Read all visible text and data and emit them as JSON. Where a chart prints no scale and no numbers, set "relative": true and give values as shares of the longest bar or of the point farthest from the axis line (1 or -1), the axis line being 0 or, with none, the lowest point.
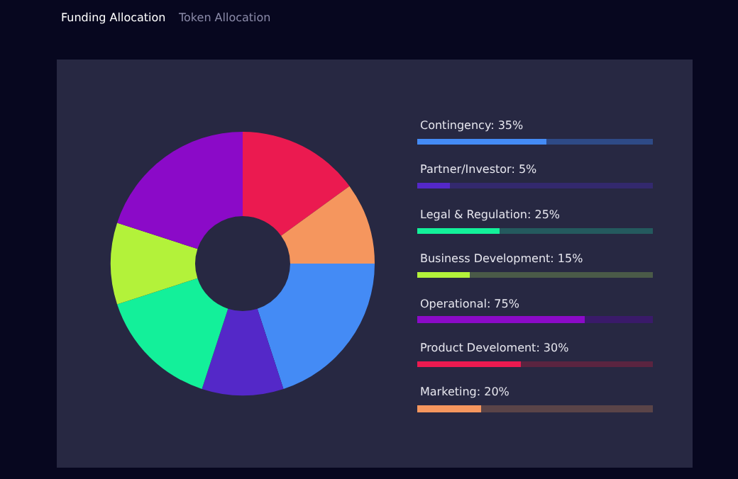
{
  "chart_data": [
    {
      "type": "donut",
      "categories": [
        null,
        null,
        null,
        null,
        null,
        null,
        null
      ],
      "values": [
        20,
        10,
        15,
        10,
        20,
        15,
        10
      ],
      "colors": [
        "#448bf5",
        "#5428c8",
        "#13f09a",
        "#b3f23a",
        "#8b0ac8",
        "#eb1a50",
        "#f5965e"
      ],
      "annotations": [
        "Funding Allocation",
        "Token Allocation"
      ]
    },
    {
      "type": "bar",
      "orientation": "horizontal",
      "stacked": true,
      "relative": true,
      "categories": [
        "Contingency: 35%",
        "Partner/Investor: 5%",
        "Legal & Regulation: 25%",
        "Business Development: 15%",
        "Operational: 75%",
        "Product Develoment: 30%",
        "Marketing: 20%"
      ],
      "series": [
        {
          "values": [
            0.55,
            0.14,
            0.35,
            0.22,
            0.71,
            0.44,
            0.27
          ],
          "colors": [
            "#448bf5",
            "#5428c8",
            "#13f09a",
            "#b3f23a",
            "#8b0ac8",
            "#eb1a50",
            "#f5965e"
          ]
        },
        {
          "values": [
            0.45,
            0.86,
            0.65,
            0.78,
            0.29,
            0.56,
            0.73
          ],
          "colors": [
            "#2e4a86",
            "#33296e",
            "#245a5e",
            "#4a5a48",
            "#3a1a6a",
            "#5a2440",
            "#5a4448"
          ]
        }
      ]
    }
  ]
}
